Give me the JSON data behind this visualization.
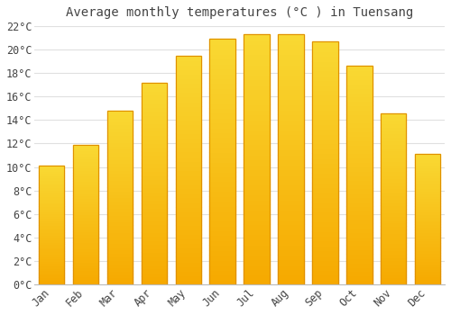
{
  "title": "Average monthly temperatures (°C ) in Tuensang",
  "months": [
    "Jan",
    "Feb",
    "Mar",
    "Apr",
    "May",
    "Jun",
    "Jul",
    "Aug",
    "Sep",
    "Oct",
    "Nov",
    "Dec"
  ],
  "values": [
    10.1,
    11.9,
    14.8,
    17.2,
    19.5,
    20.9,
    21.3,
    21.3,
    20.7,
    18.6,
    14.6,
    11.1
  ],
  "bar_color_top": "#FFD966",
  "bar_color_bottom": "#F5A800",
  "bar_edge_color": "#E09000",
  "background_color": "#FFFFFF",
  "grid_color": "#E0E0E0",
  "text_color": "#444444",
  "ylim": [
    0,
    22
  ],
  "ytick_step": 2,
  "title_fontsize": 10,
  "tick_fontsize": 8.5
}
